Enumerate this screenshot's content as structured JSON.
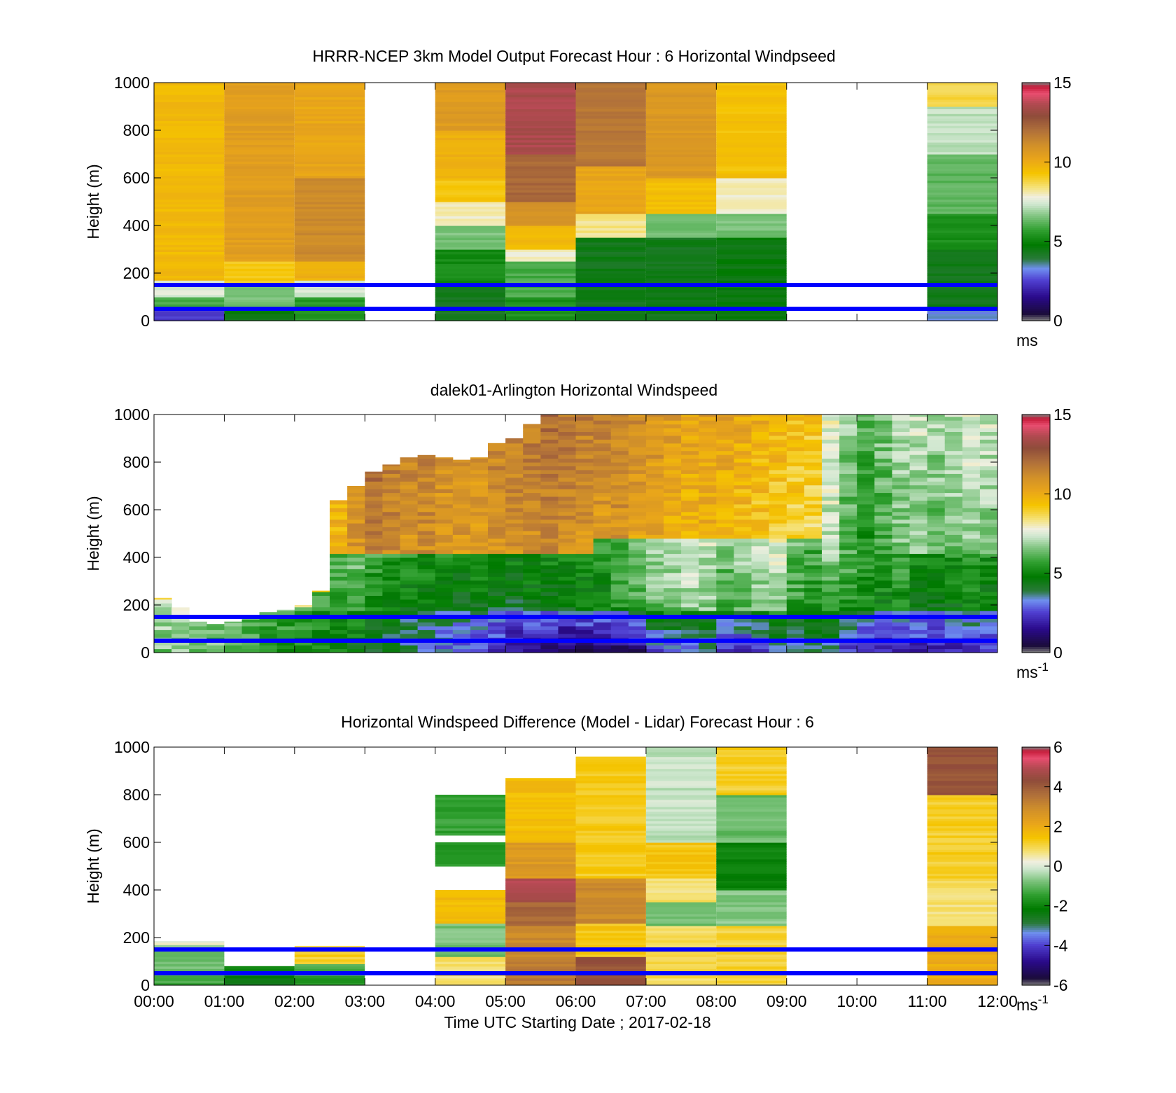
{
  "chart_data": [
    {
      "type": "heatmap",
      "title": "HRRR-NCEP 3km Model Output   Forecast Hour : 6 Horizontal Windpseed",
      "xlabel": "",
      "ylabel": "Height (m)",
      "xlim": [
        0,
        12
      ],
      "ylim": [
        0,
        1000
      ],
      "yticks": [
        "0",
        "200",
        "400",
        "600",
        "800",
        "1000"
      ],
      "colorbar": {
        "ticks": [
          "0",
          "5",
          "10",
          "15"
        ],
        "min": 0,
        "max": 15,
        "unit": "ms",
        "unit_sup": ""
      },
      "reference_lines_m": [
        50,
        150
      ],
      "columns": [
        {
          "t0": 0,
          "t1": 1,
          "bins": [
            [
              0,
              50,
              2.5
            ],
            [
              50,
              100,
              6
            ],
            [
              100,
              170,
              7.5
            ],
            [
              170,
              1000,
              9.6
            ]
          ]
        },
        {
          "t0": 1,
          "t1": 2,
          "bins": [
            [
              0,
              50,
              4.5
            ],
            [
              50,
              150,
              6.5
            ],
            [
              150,
              250,
              9.2
            ],
            [
              250,
              1000,
              10.5
            ]
          ]
        },
        {
          "t0": 2,
          "t1": 3,
          "bins": [
            [
              0,
              100,
              5.5
            ],
            [
              100,
              170,
              7.5
            ],
            [
              170,
              250,
              9.8
            ],
            [
              250,
              600,
              11.2
            ],
            [
              600,
              1000,
              10.2
            ]
          ]
        },
        {
          "t0": 4,
          "t1": 5,
          "bins": [
            [
              0,
              150,
              4.3
            ],
            [
              150,
              300,
              5.2
            ],
            [
              300,
              400,
              6.5
            ],
            [
              400,
              500,
              8
            ],
            [
              500,
              600,
              9.3
            ],
            [
              600,
              800,
              9.9
            ],
            [
              800,
              1000,
              10.6
            ]
          ]
        },
        {
          "t0": 5,
          "t1": 6,
          "bins": [
            [
              0,
              100,
              5.4
            ],
            [
              100,
              250,
              6
            ],
            [
              250,
              300,
              8
            ],
            [
              300,
              400,
              9.6
            ],
            [
              400,
              500,
              11
            ],
            [
              500,
              700,
              12.2
            ],
            [
              700,
              1000,
              13.5
            ]
          ]
        },
        {
          "t0": 6,
          "t1": 7,
          "bins": [
            [
              0,
              350,
              4.4
            ],
            [
              350,
              450,
              8.3
            ],
            [
              450,
              650,
              10.2
            ],
            [
              650,
              1000,
              11.8
            ]
          ]
        },
        {
          "t0": 7,
          "t1": 8,
          "bins": [
            [
              0,
              350,
              4.4
            ],
            [
              350,
              450,
              6.5
            ],
            [
              450,
              600,
              9.5
            ],
            [
              600,
              1000,
              10.7
            ]
          ]
        },
        {
          "t0": 8,
          "t1": 9,
          "bins": [
            [
              0,
              350,
              4.6
            ],
            [
              350,
              450,
              6.5
            ],
            [
              450,
              600,
              8
            ],
            [
              600,
              1000,
              9.4
            ]
          ]
        },
        {
          "t0": 11,
          "t1": 12,
          "bins": [
            [
              0,
              50,
              3.3
            ],
            [
              50,
              300,
              4.4
            ],
            [
              300,
              450,
              5.3
            ],
            [
              450,
              700,
              6.2
            ],
            [
              700,
              900,
              7.2
            ],
            [
              900,
              1000,
              8.8
            ]
          ]
        }
      ]
    },
    {
      "type": "heatmap",
      "title": "dalek01-Arlington  Horizontal Windspeed",
      "xlabel": "",
      "ylabel": "Height (m)",
      "xlim": [
        0,
        12
      ],
      "ylim": [
        0,
        1000
      ],
      "yticks": [
        "0",
        "200",
        "400",
        "600",
        "800",
        "1000"
      ],
      "colorbar": {
        "ticks": [
          "0",
          "5",
          "10",
          "15"
        ],
        "min": 0,
        "max": 15,
        "unit": "ms",
        "unit_sup": "-1"
      },
      "reference_lines_m": [
        50,
        150
      ],
      "time_step_h": 0.25,
      "profiles": [
        {
          "t": 0.0,
          "top": 230,
          "low": 6.5,
          "mid": 7.2,
          "up": 8.5,
          "jet": 0
        },
        {
          "t": 0.25,
          "top": 190,
          "low": 6.6,
          "mid": 7.4,
          "up": 9,
          "jet": 0
        },
        {
          "t": 0.5,
          "top": 130,
          "low": 6.5,
          "mid": 7.3,
          "up": 8,
          "jet": 0
        },
        {
          "t": 0.75,
          "top": 120,
          "low": 6.2,
          "mid": 7.5,
          "up": 9,
          "jet": 0
        },
        {
          "t": 1.0,
          "top": 130,
          "low": 6,
          "mid": 6.8,
          "up": 8,
          "jet": 0
        },
        {
          "t": 1.25,
          "top": 140,
          "low": 5.9,
          "mid": 6.5,
          "up": 8,
          "jet": 0
        },
        {
          "t": 1.5,
          "top": 170,
          "low": 5.5,
          "mid": 6.2,
          "up": 7.5,
          "jet": 0
        },
        {
          "t": 1.75,
          "top": 180,
          "low": 5.3,
          "mid": 6,
          "up": 7.2,
          "jet": 0
        },
        {
          "t": 2.0,
          "top": 200,
          "low": 5.2,
          "mid": 5.8,
          "up": 8,
          "jet": 0
        },
        {
          "t": 2.25,
          "top": 260,
          "low": 5,
          "mid": 5.5,
          "up": 8.8,
          "jet": 0
        },
        {
          "t": 2.5,
          "top": 640,
          "low": 4.8,
          "mid": 5.4,
          "up": 9.6,
          "jet": 0
        },
        {
          "t": 2.75,
          "top": 700,
          "low": 4.5,
          "mid": 5.8,
          "up": 10.8,
          "jet": 0
        },
        {
          "t": 3.0,
          "top": 760,
          "low": 4.3,
          "mid": 5,
          "up": 11.5,
          "jet": 0
        },
        {
          "t": 3.25,
          "top": 790,
          "low": 3.9,
          "mid": 4.8,
          "up": 11.2,
          "jet": 0
        },
        {
          "t": 3.5,
          "top": 820,
          "low": 3.6,
          "mid": 4.6,
          "up": 10.8,
          "jet": 0
        },
        {
          "t": 3.75,
          "top": 830,
          "low": 3.3,
          "mid": 4.5,
          "up": 11,
          "jet": 0
        },
        {
          "t": 4.0,
          "top": 820,
          "low": 3,
          "mid": 4.4,
          "up": 10.5,
          "jet": 0
        },
        {
          "t": 4.25,
          "top": 810,
          "low": 2.8,
          "mid": 4.3,
          "up": 10.6,
          "jet": 0
        },
        {
          "t": 4.5,
          "top": 820,
          "low": 2.4,
          "mid": 4.4,
          "up": 10.4,
          "jet": 0
        },
        {
          "t": 4.75,
          "top": 880,
          "low": 2.0,
          "mid": 4.3,
          "up": 10.8,
          "jet": 0
        },
        {
          "t": 5.0,
          "top": 900,
          "low": 1.6,
          "mid": 4.2,
          "up": 10.9,
          "jet": 0
        },
        {
          "t": 5.25,
          "top": 960,
          "low": 1.3,
          "mid": 4.3,
          "up": 11,
          "jet": 0
        },
        {
          "t": 5.5,
          "top": 1000,
          "low": 1.0,
          "mid": 4.4,
          "up": 11.2,
          "jet": 0
        },
        {
          "t": 5.75,
          "top": 1000,
          "low": 0.8,
          "mid": 4.5,
          "up": 11,
          "jet": 0
        },
        {
          "t": 6.0,
          "top": 1000,
          "low": 0.9,
          "mid": 4.6,
          "up": 10.8,
          "jet": 0
        },
        {
          "t": 6.25,
          "top": 1000,
          "low": 1.0,
          "mid": 4.8,
          "up": 10.6,
          "jet": 0
        },
        {
          "t": 6.5,
          "top": 1000,
          "low": 0.7,
          "mid": 5.3,
          "up": 10.8,
          "jet": 0
        },
        {
          "t": 6.75,
          "top": 1000,
          "low": 1.2,
          "mid": 5.8,
          "up": 10.4,
          "jet": 0
        },
        {
          "t": 7.0,
          "top": 1000,
          "low": 2.5,
          "mid": 6.2,
          "up": 10.2,
          "jet": 0
        },
        {
          "t": 7.25,
          "top": 1000,
          "low": 2.8,
          "mid": 6.5,
          "up": 9.9,
          "jet": 0
        },
        {
          "t": 7.5,
          "top": 1000,
          "low": 2.6,
          "mid": 6.8,
          "up": 9.6,
          "jet": 0
        },
        {
          "t": 7.75,
          "top": 1000,
          "low": 3.2,
          "mid": 6.6,
          "up": 9.8,
          "jet": 0
        },
        {
          "t": 8.0,
          "top": 1000,
          "low": 2.2,
          "mid": 5.8,
          "up": 9.6,
          "jet": 0
        },
        {
          "t": 8.25,
          "top": 1000,
          "low": 1.8,
          "mid": 6.2,
          "up": 9.4,
          "jet": 0
        },
        {
          "t": 8.5,
          "top": 1000,
          "low": 2.4,
          "mid": 6.6,
          "up": 9.2,
          "jet": 0
        },
        {
          "t": 8.75,
          "top": 1000,
          "low": 3.2,
          "mid": 6.8,
          "up": 9,
          "jet": 0
        },
        {
          "t": 9.0,
          "top": 1000,
          "low": 3.0,
          "mid": 5.6,
          "up": 8.8,
          "jet": 0
        },
        {
          "t": 9.25,
          "top": 1000,
          "low": 3.5,
          "mid": 5.2,
          "up": 8.6,
          "jet": 0
        },
        {
          "t": 9.5,
          "top": 1000,
          "low": 3.6,
          "mid": 5.8,
          "up": 7.0,
          "jet": 0
        },
        {
          "t": 9.75,
          "top": 1000,
          "low": 2.4,
          "mid": 5.4,
          "up": 6.0,
          "jet": 0
        },
        {
          "t": 10.0,
          "top": 1000,
          "low": 2.0,
          "mid": 5.0,
          "up": 5.4,
          "jet": 0
        },
        {
          "t": 10.25,
          "top": 1000,
          "low": 1.8,
          "mid": 4.8,
          "up": 5.8,
          "jet": 0
        },
        {
          "t": 10.5,
          "top": 1000,
          "low": 1.7,
          "mid": 5.0,
          "up": 6.4,
          "jet": 0
        },
        {
          "t": 10.75,
          "top": 1000,
          "low": 1.9,
          "mid": 4.6,
          "up": 6.6,
          "jet": 0
        },
        {
          "t": 11.0,
          "top": 1000,
          "low": 1.8,
          "mid": 4.4,
          "up": 6.2,
          "jet": 0
        },
        {
          "t": 11.25,
          "top": 1000,
          "low": 2.0,
          "mid": 4.6,
          "up": 6.4,
          "jet": 0
        },
        {
          "t": 11.5,
          "top": 1000,
          "low": 2.2,
          "mid": 4.8,
          "up": 6.8,
          "jet": 0
        },
        {
          "t": 11.75,
          "top": 1000,
          "low": 2.4,
          "mid": 4.5,
          "up": 6.6,
          "jet": 0
        }
      ]
    },
    {
      "type": "heatmap",
      "title": "Horizontal Windspeed Difference (Model - Lidar) Forecast Hour : 6",
      "xlabel": "Time UTC  Starting Date ; 2017-02-18",
      "ylabel": "Height (m)",
      "xlim": [
        0,
        12
      ],
      "ylim": [
        0,
        1000
      ],
      "yticks": [
        "0",
        "200",
        "400",
        "600",
        "800",
        "1000"
      ],
      "xticks": [
        "00:00",
        "01:00",
        "02:00",
        "03:00",
        "04:00",
        "05:00",
        "06:00",
        "07:00",
        "08:00",
        "09:00",
        "10:00",
        "11:00",
        "12:00"
      ],
      "colorbar": {
        "ticks": [
          "-6",
          "-4",
          "-2",
          "0",
          "2",
          "4",
          "6"
        ],
        "min": -6,
        "max": 6,
        "unit": "ms",
        "unit_sup": "-1"
      },
      "reference_lines_m": [
        50,
        150
      ],
      "columns": [
        {
          "t0": 0,
          "t1": 1,
          "bins": [
            [
              0,
              60,
              -1.2
            ],
            [
              60,
              170,
              -0.8
            ],
            [
              170,
              185,
              0.3
            ]
          ]
        },
        {
          "t0": 1,
          "t1": 2,
          "bins": [
            [
              0,
              40,
              -2.4
            ],
            [
              40,
              80,
              -1.8
            ]
          ]
        },
        {
          "t0": 2,
          "t1": 3,
          "bins": [
            [
              0,
              40,
              -1.6
            ],
            [
              40,
              90,
              -1.2
            ],
            [
              90,
              165,
              1.2
            ]
          ]
        },
        {
          "t0": 4,
          "t1": 5,
          "bins": [
            [
              0,
              120,
              0.8
            ],
            [
              120,
              260,
              -0.8
            ],
            [
              260,
              400,
              1.6
            ],
            [
              500,
              600,
              -1.6
            ],
            [
              630,
              800,
              -1.4
            ]
          ]
        },
        {
          "t0": 5,
          "t1": 6,
          "bins": [
            [
              0,
              100,
              3.4
            ],
            [
              100,
              250,
              3.0
            ],
            [
              250,
              350,
              3.8
            ],
            [
              350,
              450,
              4.8
            ],
            [
              450,
              600,
              2.6
            ],
            [
              600,
              870,
              1.6
            ]
          ]
        },
        {
          "t0": 6,
          "t1": 7,
          "bins": [
            [
              0,
              120,
              4.2
            ],
            [
              120,
              260,
              1.4
            ],
            [
              260,
              450,
              3.0
            ],
            [
              450,
              960,
              1.3
            ]
          ]
        },
        {
          "t0": 7,
          "t1": 8,
          "bins": [
            [
              0,
              250,
              0.9
            ],
            [
              250,
              350,
              -0.8
            ],
            [
              350,
              450,
              0.8
            ],
            [
              450,
              600,
              1.4
            ],
            [
              600,
              1000,
              -0.2
            ]
          ]
        },
        {
          "t0": 8,
          "t1": 9,
          "bins": [
            [
              0,
              250,
              1.1
            ],
            [
              250,
              400,
              -0.7
            ],
            [
              400,
              600,
              -2.0
            ],
            [
              600,
              800,
              -0.9
            ],
            [
              800,
              1000,
              1.2
            ]
          ]
        },
        {
          "t0": 11,
          "t1": 12,
          "bins": [
            [
              0,
              250,
              2.0
            ],
            [
              250,
              450,
              0.8
            ],
            [
              450,
              800,
              1.2
            ],
            [
              800,
              1000,
              4.2
            ]
          ]
        }
      ]
    }
  ]
}
